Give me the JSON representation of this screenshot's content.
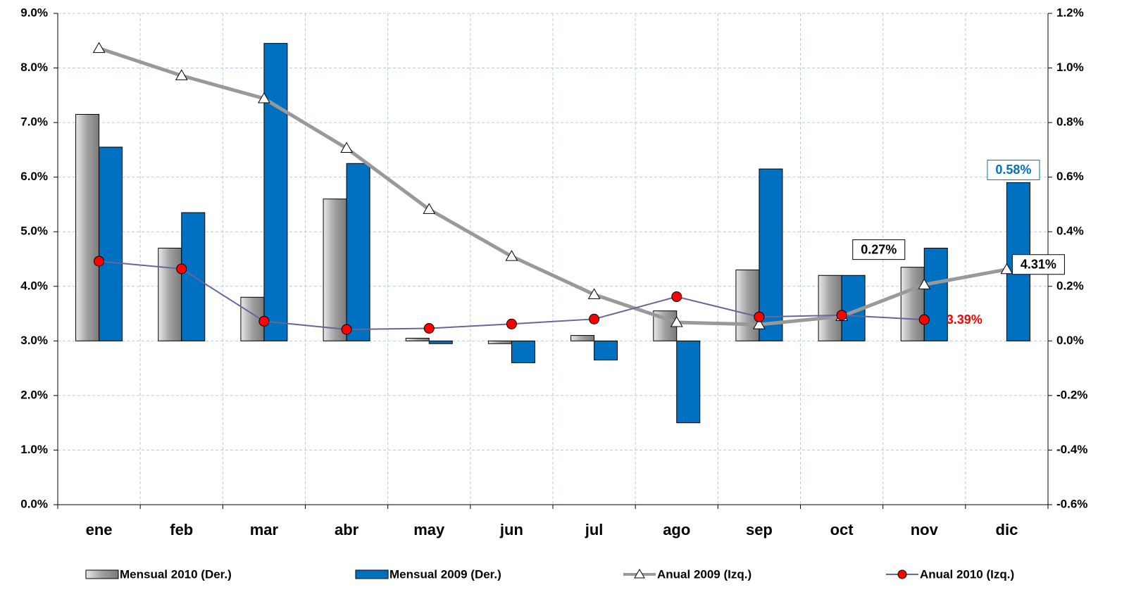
{
  "chart_data": {
    "type": "combo",
    "categories": [
      "ene",
      "feb",
      "mar",
      "abr",
      "may",
      "jun",
      "jul",
      "ago",
      "sep",
      "oct",
      "nov",
      "dic"
    ],
    "ylim": [
      0,
      9
    ],
    "yticks": [
      {
        "value": 0,
        "label": "0.0%"
      },
      {
        "value": 1,
        "label": "1.0%"
      },
      {
        "value": 2,
        "label": "2.0%"
      },
      {
        "value": 3,
        "label": "3.0%"
      },
      {
        "value": 4,
        "label": "4.0%"
      },
      {
        "value": 5,
        "label": "5.0%"
      },
      {
        "value": 6,
        "label": "6.0%"
      },
      {
        "value": 7,
        "label": "7.0%"
      },
      {
        "value": 8,
        "label": "8.0%"
      },
      {
        "value": 9,
        "label": "9.0%"
      }
    ],
    "y2lim": [
      -0.6,
      1.2
    ],
    "y2ticks": [
      {
        "value": -0.6,
        "label": "-0.6%"
      },
      {
        "value": -0.4,
        "label": "-0.4%"
      },
      {
        "value": -0.2,
        "label": "-0.2%"
      },
      {
        "value": 0,
        "label": "0.0%"
      },
      {
        "value": 0.2,
        "label": "0.2%"
      },
      {
        "value": 0.4,
        "label": "0.4%"
      },
      {
        "value": 0.6,
        "label": "0.6%"
      },
      {
        "value": 0.8,
        "label": "0.8%"
      },
      {
        "value": 1.0,
        "label": "1.0%"
      },
      {
        "value": 1.2,
        "label": "1.2%"
      }
    ],
    "grid": true,
    "legend": "bottom",
    "series": [
      {
        "name": "Mensual 2010 (Der.)",
        "type": "bar",
        "axis": "y2",
        "color": "#a6a6a6",
        "values": [
          0.83,
          0.34,
          0.16,
          0.52,
          0.01,
          -0.01,
          0.02,
          0.11,
          0.26,
          0.24,
          0.27,
          null
        ],
        "value_labels": [
          null,
          null,
          null,
          null,
          null,
          null,
          null,
          null,
          null,
          null,
          "0.27%",
          null
        ]
      },
      {
        "name": "Mensual 2009 (Der.)",
        "type": "bar",
        "axis": "y2",
        "color": "#0070c0",
        "values": [
          0.71,
          0.47,
          1.09,
          0.65,
          -0.01,
          -0.08,
          -0.07,
          -0.3,
          0.63,
          0.24,
          0.34,
          0.58
        ],
        "value_labels": [
          null,
          null,
          null,
          null,
          null,
          null,
          null,
          null,
          null,
          null,
          null,
          "0.58%"
        ]
      },
      {
        "name": "Anual 2009 (Izq.)",
        "type": "line",
        "color": "#999999",
        "marker": "triangle",
        "values": [
          8.36,
          7.86,
          7.44,
          6.53,
          5.41,
          4.55,
          3.85,
          3.34,
          3.3,
          3.45,
          4.03,
          4.31
        ],
        "value_labels": [
          null,
          null,
          null,
          null,
          null,
          null,
          null,
          null,
          null,
          null,
          null,
          "4.31%"
        ]
      },
      {
        "name": "Anual 2010 (Izq.)",
        "type": "line",
        "color": "#666699",
        "marker": "circle",
        "values": [
          4.46,
          4.32,
          3.36,
          3.21,
          3.23,
          3.31,
          3.4,
          3.81,
          3.44,
          3.47,
          3.39,
          null
        ],
        "value_labels": [
          null,
          null,
          null,
          null,
          null,
          null,
          null,
          null,
          null,
          null,
          "3.39%",
          null
        ]
      }
    ]
  }
}
